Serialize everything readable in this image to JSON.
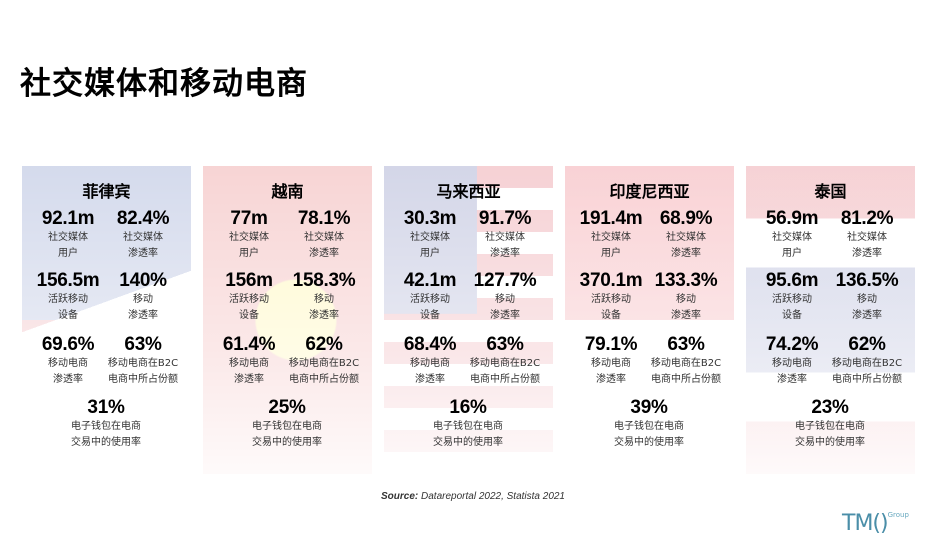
{
  "title": "社交媒体和移动电商",
  "countries": [
    {
      "name": "菲律宾",
      "flag": "philippines",
      "stats": [
        {
          "value": "92.1m",
          "label": "社交媒体\n用户"
        },
        {
          "value": "82.4%",
          "label": "社交媒体\n渗透率"
        },
        {
          "value": "156.5m",
          "label": "活跃移动\n设备"
        },
        {
          "value": "140%",
          "label": "移动\n渗透率"
        },
        {
          "value": "69.6%",
          "label": "移动电商\n渗透率"
        },
        {
          "value": "63%",
          "label": "移动电商在B2C\n电商中所占份额"
        },
        {
          "value": "31%",
          "label": "电子钱包在电商\n交易中的使用率"
        }
      ]
    },
    {
      "name": "越南",
      "flag": "vietnam",
      "stats": [
        {
          "value": "77m",
          "label": "社交媒体\n用户"
        },
        {
          "value": "78.1%",
          "label": "社交媒体\n渗透率"
        },
        {
          "value": "156m",
          "label": "活跃移动\n设备"
        },
        {
          "value": "158.3%",
          "label": "移动\n渗透率"
        },
        {
          "value": "61.4%",
          "label": "移动电商\n渗透率"
        },
        {
          "value": "62%",
          "label": "移动电商在B2C\n电商中所占份额"
        },
        {
          "value": "25%",
          "label": "电子钱包在电商\n交易中的使用率"
        }
      ]
    },
    {
      "name": "马来西亚",
      "flag": "malaysia",
      "stats": [
        {
          "value": "30.3m",
          "label": "社交媒体\n用户"
        },
        {
          "value": "91.7%",
          "label": "社交媒体\n渗透率"
        },
        {
          "value": "42.1m",
          "label": "活跃移动\n设备"
        },
        {
          "value": "127.7%",
          "label": "移动\n渗透率"
        },
        {
          "value": "68.4%",
          "label": "移动电商\n渗透率"
        },
        {
          "value": "63%",
          "label": "移动电商在B2C\n电商中所占份额"
        },
        {
          "value": "16%",
          "label": "电子钱包在电商\n交易中的使用率"
        }
      ]
    },
    {
      "name": "印度尼西亚",
      "flag": "indonesia",
      "stats": [
        {
          "value": "191.4m",
          "label": "社交媒体\n用户"
        },
        {
          "value": "68.9%",
          "label": "社交媒体\n渗透率"
        },
        {
          "value": "370.1m",
          "label": "活跃移动\n设备"
        },
        {
          "value": "133.3%",
          "label": "移动\n渗透率"
        },
        {
          "value": "79.1%",
          "label": "移动电商\n渗透率"
        },
        {
          "value": "63%",
          "label": "移动电商在B2C\n电商中所占份额"
        },
        {
          "value": "39%",
          "label": "电子钱包在电商\n交易中的使用率"
        }
      ]
    },
    {
      "name": "泰国",
      "flag": "thailand",
      "stats": [
        {
          "value": "56.9m",
          "label": "社交媒体\n用户"
        },
        {
          "value": "81.2%",
          "label": "社交媒体\n渗透率"
        },
        {
          "value": "95.6m",
          "label": "活跃移动\n设备"
        },
        {
          "value": "136.5%",
          "label": "移动\n渗透率"
        },
        {
          "value": "74.2%",
          "label": "移动电商\n渗透率"
        },
        {
          "value": "62%",
          "label": "移动电商在B2C\n电商中所占份额"
        },
        {
          "value": "23%",
          "label": "电子钱包在电商\n交易中的使用率"
        }
      ]
    }
  ],
  "source": {
    "label": "Source:",
    "text": " Datareportal 2022, Statista 2021"
  },
  "logo": {
    "text": "TM()",
    "sup": "Group"
  }
}
